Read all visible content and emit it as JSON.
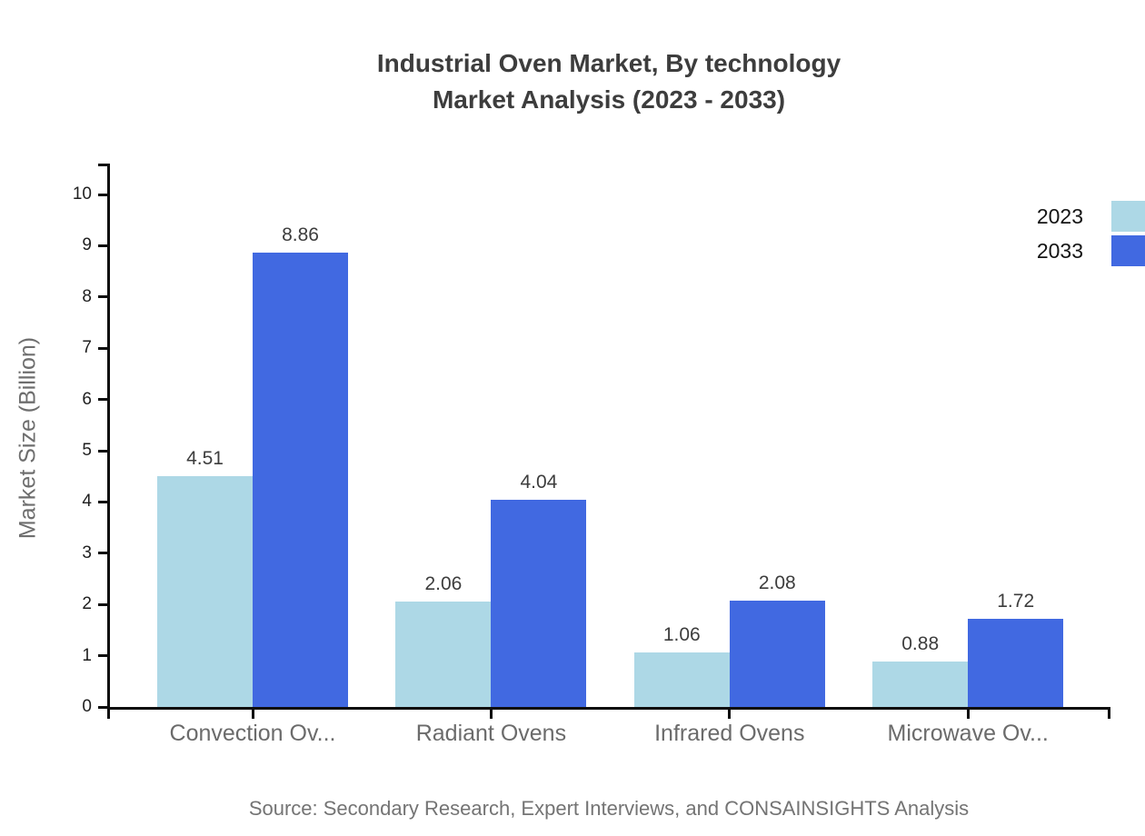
{
  "title": {
    "line1": "Industrial Oven Market, By technology",
    "line2": "Market Analysis (2023 - 2033)"
  },
  "y_axis": {
    "label": "Market Size (Billion)"
  },
  "legend": [
    {
      "label": "2023",
      "color": "#ADD8E6"
    },
    {
      "label": "2033",
      "color": "#4169E1"
    }
  ],
  "source": "Source: Secondary Research, Expert Interviews, and CONSAINSIGHTS Analysis",
  "chart_data": {
    "type": "bar",
    "title": "Industrial Oven Market, By technology Market Analysis (2023 - 2033)",
    "categories": [
      "Convection Ov...",
      "Radiant Ovens",
      "Infrared Ovens",
      "Microwave Ov..."
    ],
    "series": [
      {
        "name": "2023",
        "color": "#ADD8E6",
        "values": [
          4.51,
          2.06,
          1.06,
          0.88
        ]
      },
      {
        "name": "2033",
        "color": "#4169E1",
        "values": [
          8.86,
          4.04,
          2.08,
          1.72
        ]
      }
    ],
    "xlabel": "",
    "ylabel": "Market Size (Billion)",
    "ylim": [
      0,
      10
    ],
    "ytick_step": 1,
    "grid": false,
    "legend_position": "top-right",
    "value_labels": true,
    "value_label_format": "2-decimals"
  }
}
